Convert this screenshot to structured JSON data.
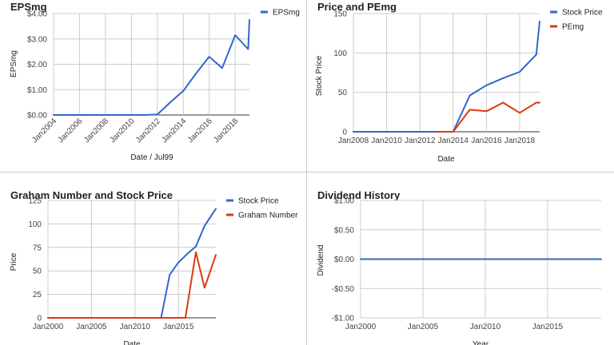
{
  "chart_data": [
    {
      "type": "line",
      "title": "EPSmg",
      "xlabel": "Date / Jul99",
      "ylabel": "EPSmg",
      "xlim": [
        2004,
        2019.1
      ],
      "ylim": [
        0,
        4
      ],
      "yticks": [
        0,
        1,
        2,
        3,
        4
      ],
      "ytick_labels": [
        "$0.00",
        "$1.00",
        "$2.00",
        "$3.00",
        "$4.00"
      ],
      "xticks": [
        2004,
        2006,
        2008,
        2010,
        2012,
        2014,
        2016,
        2018
      ],
      "xtick_labels": [
        "Jan2004",
        "Jan2006",
        "Jan2008",
        "Jan2010",
        "Jan2012",
        "Jan2014",
        "Jan2016",
        "Jan2018"
      ],
      "x_rotated": true,
      "legend": "top-right",
      "series": [
        {
          "name": "EPSmg",
          "color": "#3366cc",
          "x": [
            2004,
            2005,
            2006,
            2007,
            2008,
            2009,
            2010,
            2011,
            2012,
            2013,
            2014,
            2015,
            2016,
            2017,
            2018,
            2019,
            2019.1
          ],
          "y": [
            0,
            0,
            0,
            0,
            0,
            0,
            0,
            0,
            0.02,
            0.5,
            0.95,
            1.65,
            2.3,
            1.85,
            3.15,
            2.6,
            3.75
          ]
        }
      ]
    },
    {
      "type": "line",
      "title": "Price and PEmg",
      "xlabel": "Date",
      "ylabel": "Stock Price",
      "xlim": [
        2008,
        2019.2
      ],
      "ylim": [
        0,
        150
      ],
      "yticks": [
        0,
        50,
        100,
        150
      ],
      "ytick_labels": [
        "0",
        "50",
        "100",
        "150"
      ],
      "xticks": [
        2008,
        2010,
        2012,
        2014,
        2016,
        2018
      ],
      "xtick_labels": [
        "Jan2008",
        "Jan2010",
        "Jan2012",
        "Jan2014",
        "Jan2016",
        "Jan2018"
      ],
      "x_rotated": false,
      "legend": "top-right",
      "series": [
        {
          "name": "Stock Price",
          "color": "#3366cc",
          "x": [
            2008,
            2009,
            2010,
            2011,
            2012,
            2013,
            2014,
            2015,
            2016,
            2017,
            2018,
            2019,
            2019.2
          ],
          "y": [
            0,
            0,
            0,
            0,
            0,
            0,
            0,
            46,
            59,
            68,
            76,
            98,
            140
          ]
        },
        {
          "name": "PEmg",
          "color": "#dc3912",
          "x": [
            2013,
            2014,
            2015,
            2016,
            2017,
            2018,
            2019,
            2019.2
          ],
          "y": [
            0,
            0,
            28,
            26,
            37,
            24,
            37,
            37
          ]
        }
      ]
    },
    {
      "type": "line",
      "title": "Graham Number and Stock Price",
      "xlabel": "Date",
      "ylabel": "Price",
      "xlim": [
        2000,
        2019.3
      ],
      "ylim": [
        0,
        125
      ],
      "yticks": [
        0,
        25,
        50,
        75,
        100,
        125
      ],
      "ytick_labels": [
        "0",
        "25",
        "50",
        "75",
        "100",
        "125"
      ],
      "xticks": [
        2000,
        2005,
        2010,
        2015
      ],
      "xtick_labels": [
        "Jan2000",
        "Jan2005",
        "Jan2010",
        "Jan2015"
      ],
      "x_rotated": false,
      "legend": "top-right",
      "series": [
        {
          "name": "Stock Price",
          "color": "#3366cc",
          "x": [
            2000,
            2013,
            2014,
            2015,
            2016,
            2017,
            2018,
            2019,
            2019.3
          ],
          "y": [
            0,
            0,
            46,
            59,
            68,
            76,
            98,
            112,
            116
          ]
        },
        {
          "name": "Graham Number",
          "color": "#dc3912",
          "x": [
            2000,
            2015.8,
            2017,
            2018,
            2019.3
          ],
          "y": [
            0,
            0,
            70,
            32,
            67
          ]
        }
      ]
    },
    {
      "type": "line",
      "title": "Dividend History",
      "xlabel": "Year",
      "ylabel": "Dividend",
      "xlim": [
        2000,
        2019.3
      ],
      "ylim": [
        -1,
        1
      ],
      "yticks": [
        -1,
        -0.5,
        0,
        0.5,
        1
      ],
      "ytick_labels": [
        "-$1.00",
        "-$0.50",
        "$0.00",
        "$0.50",
        "$1.00"
      ],
      "xticks": [
        2000,
        2005,
        2010,
        2015
      ],
      "xtick_labels": [
        "Jan2000",
        "Jan2005",
        "Jan2010",
        "Jan2015"
      ],
      "x_rotated": false,
      "legend": "none",
      "series": [
        {
          "color": "#3366cc",
          "x": [
            2000,
            2019.3
          ],
          "y": [
            0,
            0
          ]
        }
      ]
    }
  ]
}
